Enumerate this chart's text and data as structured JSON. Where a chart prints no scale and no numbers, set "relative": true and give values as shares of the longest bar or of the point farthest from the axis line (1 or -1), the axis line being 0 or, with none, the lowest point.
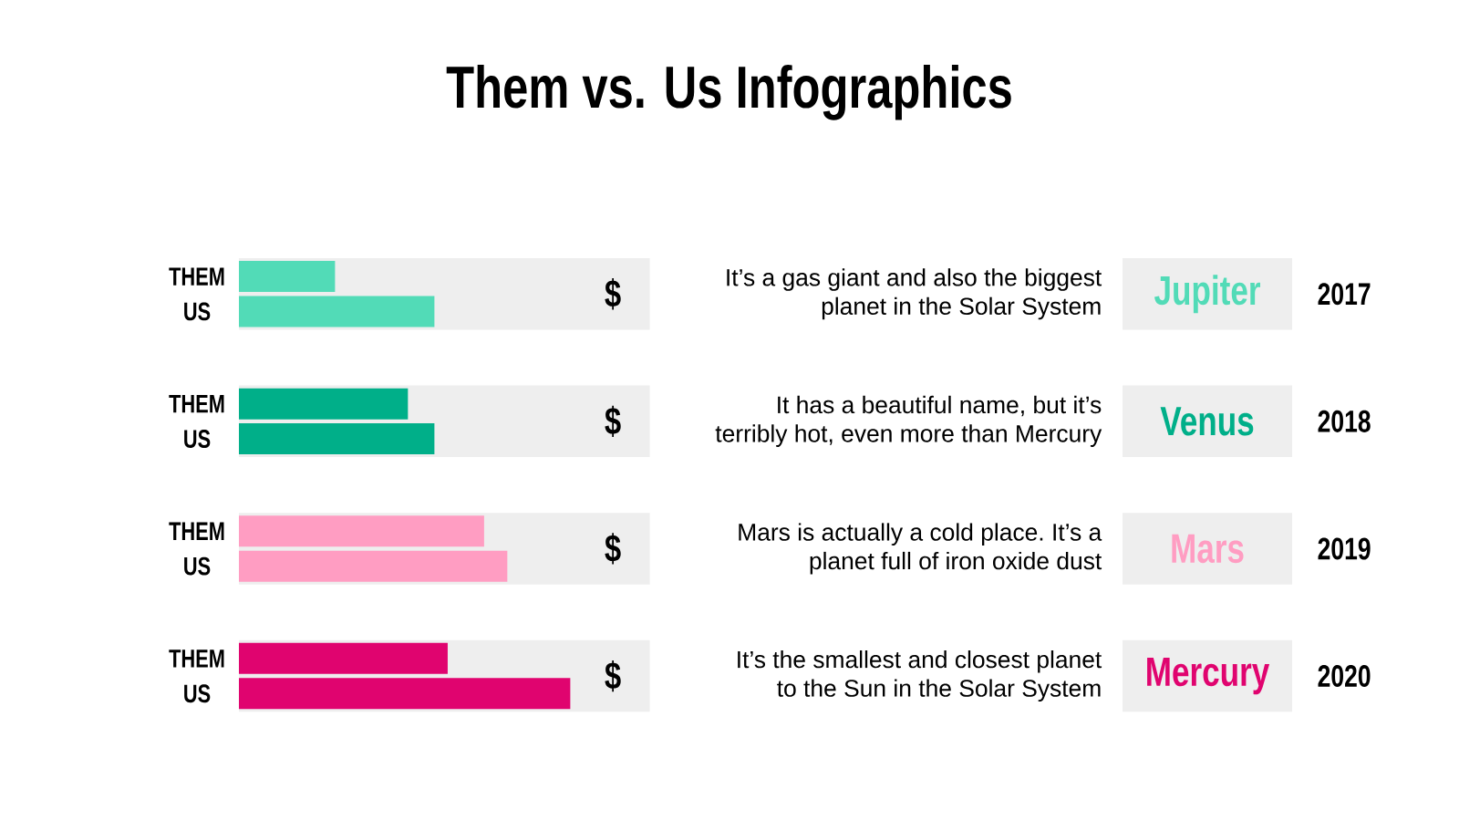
{
  "chart_data": {
    "type": "bar",
    "orientation": "horizontal",
    "relative": true,
    "title": "Them vs. Us Infographics",
    "categories": [
      "Jupiter",
      "Venus",
      "Mars",
      "Mercury"
    ],
    "series": [
      {
        "name": "THEM",
        "colors": [
          "#52dbb7",
          "#00af89",
          "#ff9dc2",
          "#e0046f"
        ],
        "values": [
          0.29,
          0.51,
          0.74,
          0.63
        ]
      },
      {
        "name": "US",
        "colors": [
          "#52dbb7",
          "#00af89",
          "#ff9dc2",
          "#e0046f"
        ],
        "values": [
          0.59,
          0.59,
          0.81,
          1
        ]
      }
    ],
    "bands": [
      {
        "axis": "x",
        "from": 0,
        "to": 1.24,
        "color": "#eeeeee"
      },
      {
        "axis": "x",
        "from": 0,
        "to": 1.24,
        "color": "#eeeeee"
      },
      {
        "axis": "x",
        "from": 0,
        "to": 1.24,
        "color": "#eeeeee"
      },
      {
        "axis": "x",
        "from": 0,
        "to": 1.24,
        "color": "#eeeeee"
      }
    ],
    "annotations": [
      "It’s a gas giant and also the biggest planet in the Solar System",
      "It has a beautiful name, but it’s terribly hot, even more than Mercury",
      "Mars is actually a cold place. It’s a planet full of iron oxide dust",
      "It’s the smallest and closest planet to the Sun in the Solar System",
      "2017",
      "2018",
      "2019",
      "2020",
      "$",
      "$",
      "$",
      "$"
    ]
  }
}
